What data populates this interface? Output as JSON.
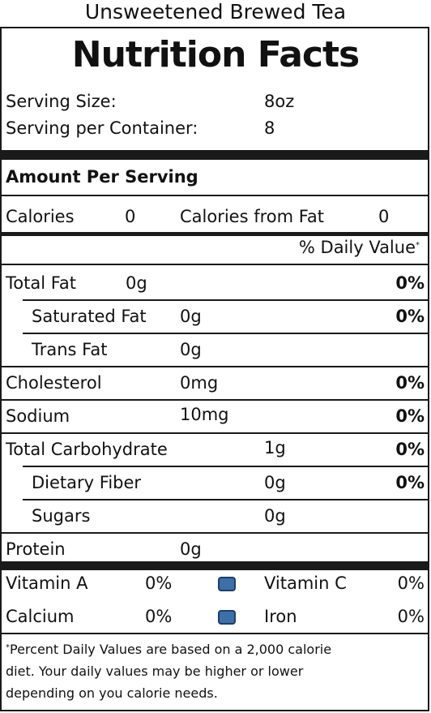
{
  "product_name": "Unsweetened Brewed Tea",
  "panel_title": "Nutrition Facts",
  "serving": {
    "size_label": "Serving Size:",
    "size_value": "8oz",
    "per_container_label": "Serving per Container:",
    "per_container_value": "8"
  },
  "amount_header": "Amount Per Serving",
  "calories": {
    "label": "Calories",
    "value": "0",
    "from_fat_label": "Calories from Fat",
    "from_fat_value": "0"
  },
  "daily_value_header": "% Daily Value",
  "daily_value_marker": "*",
  "nutrients": {
    "total_fat": {
      "label": "Total Fat",
      "amount": "0g",
      "dv": "0%"
    },
    "saturated_fat": {
      "label": "Saturated Fat",
      "amount": "0g",
      "dv": "0%"
    },
    "trans_fat": {
      "label": "Trans Fat",
      "amount": "0g"
    },
    "cholesterol": {
      "label": "Cholesterol",
      "amount": "0mg",
      "dv": "0%"
    },
    "sodium": {
      "label": "Sodium",
      "amount": "10mg",
      "dv": "0%"
    },
    "total_carbohydrate": {
      "label": "Total Carbohydrate",
      "amount": "1g",
      "dv": "0%"
    },
    "dietary_fiber": {
      "label": "Dietary Fiber",
      "amount": "0g",
      "dv": "0%"
    },
    "sugars": {
      "label": "Sugars",
      "amount": "0g"
    },
    "protein": {
      "label": "Protein",
      "amount": "0g"
    }
  },
  "vitamins": {
    "vitamin_a": {
      "label": "Vitamin A",
      "value": "0%"
    },
    "vitamin_c": {
      "label": "Vitamin C",
      "value": "0%"
    },
    "calcium": {
      "label": "Calcium",
      "value": "0%"
    },
    "iron": {
      "label": "Iron",
      "value": "0%"
    }
  },
  "separator_icon": "blue-square-bullet-icon",
  "colors": {
    "bullet_fill": "#3d6fa8",
    "bullet_border": "#1f3e66"
  },
  "footnote": {
    "marker": "*",
    "line1": "Percent Daily Values are based on a 2,000 calorie",
    "line2": "diet.  Your daily values may be higher or lower",
    "line3": "depending on you calorie needs."
  }
}
